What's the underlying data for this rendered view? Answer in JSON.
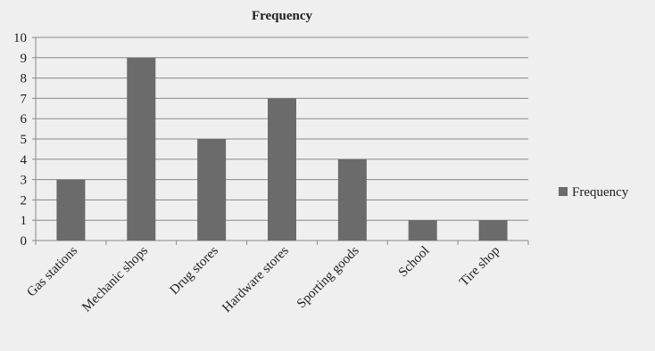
{
  "chart_data": {
    "type": "bar",
    "title": "Frequency",
    "categories": [
      "Gas stations",
      "Mechanic shops",
      "Drug stores",
      "Hardware stores",
      "Sporting goods",
      "School",
      "Tire shop"
    ],
    "series": [
      {
        "name": "Frequency",
        "values": [
          3,
          9,
          5,
          7,
          4,
          1,
          1
        ]
      }
    ],
    "ylim": [
      0,
      10
    ],
    "yticks": [
      0,
      1,
      2,
      3,
      4,
      5,
      6,
      7,
      8,
      9,
      10
    ],
    "grid": true,
    "legend_position": "right",
    "colors": {
      "bar": "#6b6b6b",
      "background": "#efefef",
      "grid": "#8a8a8a",
      "text": "#1e1e1e"
    }
  }
}
